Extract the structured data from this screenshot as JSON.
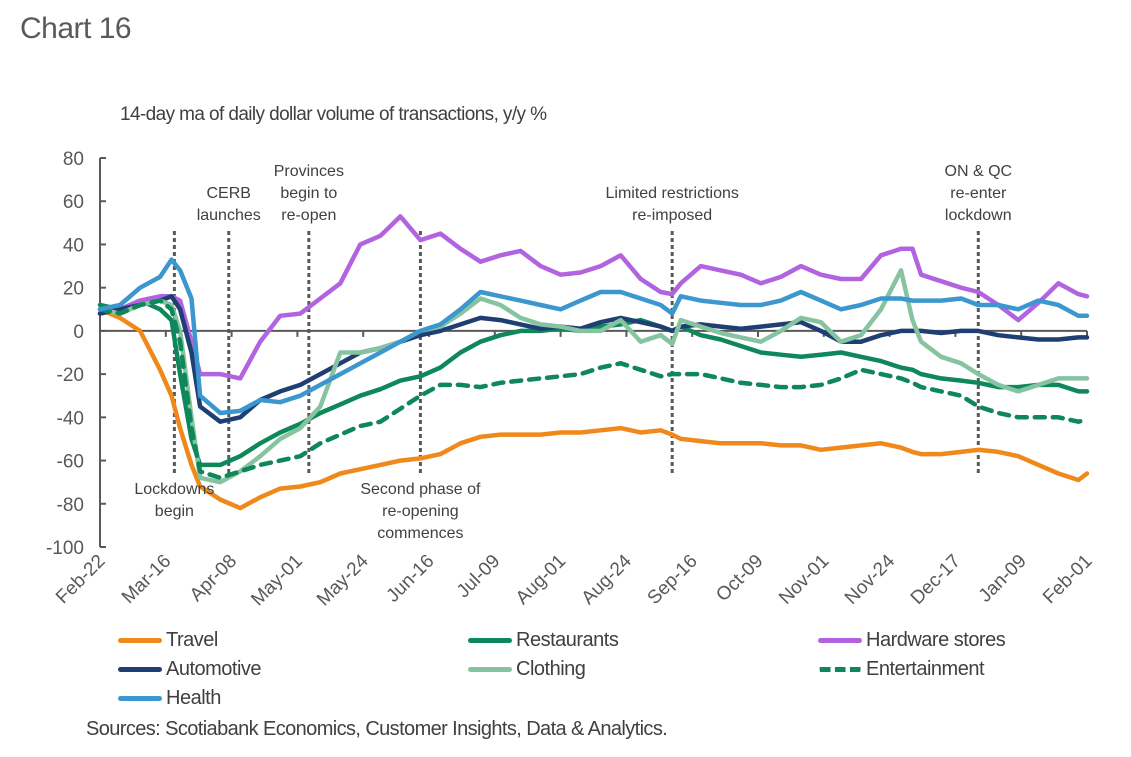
{
  "chart_data": {
    "type": "line",
    "title": "Chart 16",
    "subtitle": "14-day ma of daily dollar volume of transactions, y/y %",
    "xlabel": "",
    "ylabel": "",
    "ylim": [
      -100,
      80
    ],
    "yticks": [
      80,
      60,
      40,
      20,
      0,
      -20,
      -40,
      -60,
      -80,
      -100
    ],
    "x_tick_labels": [
      "Feb-22",
      "Mar-16",
      "Apr-08",
      "May-01",
      "May-24",
      "Jun-16",
      "Jul-09",
      "Aug-01",
      "Aug-24",
      "Sep-16",
      "Oct-09",
      "Nov-01",
      "Nov-24",
      "Dec-17",
      "Jan-09",
      "Feb-01"
    ],
    "x_unit": "days since Feb-22",
    "xlim": [
      0,
      345
    ],
    "grid": false,
    "legend_position": "bottom",
    "annotations": [
      {
        "day": 26,
        "text": [
          "Lockdowns",
          "begin"
        ],
        "position": "below"
      },
      {
        "day": 45,
        "text": [
          "CERB",
          "launches"
        ],
        "position": "above"
      },
      {
        "day": 73,
        "text": [
          "Provinces",
          "begin to",
          "re-open"
        ],
        "position": "above"
      },
      {
        "day": 112,
        "text": [
          "Second phase of",
          "re-opening",
          "commences"
        ],
        "position": "below"
      },
      {
        "day": 200,
        "text": [
          "Limited restrictions",
          "re-imposed"
        ],
        "position": "above"
      },
      {
        "day": 307,
        "text": [
          "ON & QC",
          "re-enter",
          "lockdown"
        ],
        "position": "above"
      }
    ],
    "x": [
      0,
      7,
      14,
      21,
      25,
      28,
      32,
      35,
      42,
      49,
      56,
      63,
      70,
      77,
      84,
      91,
      98,
      105,
      112,
      119,
      126,
      133,
      140,
      147,
      154,
      161,
      168,
      175,
      182,
      189,
      196,
      200,
      203,
      210,
      217,
      224,
      231,
      238,
      245,
      252,
      259,
      266,
      273,
      280,
      284,
      287,
      294,
      301,
      307,
      314,
      321,
      328,
      335,
      342,
      345
    ],
    "series": [
      {
        "name": "Travel",
        "color": "#F0891C",
        "dash": false,
        "values": [
          10,
          6,
          0,
          -18,
          -30,
          -45,
          -62,
          -72,
          -78,
          -82,
          -77,
          -73,
          -72,
          -70,
          -66,
          -64,
          -62,
          -60,
          -59,
          -57,
          -52,
          -49,
          -48,
          -48,
          -48,
          -47,
          -47,
          -46,
          -45,
          -47,
          -46,
          -48,
          -50,
          -51,
          -52,
          -52,
          -52,
          -53,
          -53,
          -55,
          -54,
          -53,
          -52,
          -54,
          -56,
          -57,
          -57,
          -56,
          -55,
          -56,
          -58,
          -62,
          -66,
          -69,
          -66
        ]
      },
      {
        "name": "Restaurants",
        "color": "#0E875B",
        "dash": false,
        "values": [
          12,
          10,
          14,
          10,
          5,
          -20,
          -50,
          -62,
          -62,
          -58,
          -52,
          -47,
          -43,
          -38,
          -34,
          -30,
          -27,
          -23,
          -21,
          -17,
          -10,
          -5,
          -2,
          0,
          0,
          1,
          0,
          2,
          3,
          5,
          2,
          0,
          2,
          -2,
          -4,
          -7,
          -10,
          -11,
          -12,
          -11,
          -10,
          -12,
          -14,
          -17,
          -18,
          -20,
          -22,
          -23,
          -24,
          -26,
          -26,
          -25,
          -25,
          -28,
          -28
        ]
      },
      {
        "name": "Hardware stores",
        "color": "#B163E0",
        "dash": false,
        "values": [
          8,
          10,
          14,
          16,
          16,
          14,
          -5,
          -20,
          -20,
          -22,
          -5,
          7,
          8,
          15,
          22,
          40,
          44,
          53,
          42,
          45,
          38,
          32,
          35,
          37,
          30,
          26,
          27,
          30,
          35,
          24,
          18,
          17,
          22,
          30,
          28,
          26,
          22,
          25,
          30,
          26,
          24,
          24,
          35,
          38,
          38,
          26,
          23,
          20,
          18,
          12,
          5,
          13,
          22,
          17,
          16
        ]
      },
      {
        "name": "Automotive",
        "color": "#1F3F73",
        "dash": false,
        "values": [
          8,
          10,
          12,
          14,
          16,
          10,
          -10,
          -35,
          -42,
          -40,
          -32,
          -28,
          -25,
          -20,
          -15,
          -10,
          -8,
          -5,
          -2,
          0,
          3,
          6,
          5,
          3,
          1,
          2,
          1,
          4,
          6,
          4,
          2,
          0,
          2,
          3,
          2,
          1,
          2,
          3,
          4,
          0,
          -5,
          -5,
          -2,
          0,
          0,
          0,
          -1,
          0,
          0,
          -2,
          -3,
          -4,
          -4,
          -3,
          -3
        ]
      },
      {
        "name": "Clothing",
        "color": "#86C3A0",
        "dash": false,
        "values": [
          10,
          8,
          12,
          14,
          12,
          0,
          -40,
          -68,
          -70,
          -65,
          -58,
          -50,
          -45,
          -35,
          -10,
          -10,
          -8,
          -5,
          0,
          2,
          8,
          15,
          12,
          6,
          3,
          2,
          0,
          0,
          5,
          -5,
          -2,
          -6,
          5,
          2,
          -1,
          -3,
          -5,
          0,
          6,
          4,
          -5,
          -2,
          10,
          28,
          5,
          -5,
          -12,
          -15,
          -20,
          -25,
          -28,
          -25,
          -22,
          -22,
          -22
        ]
      },
      {
        "name": "Entertainment",
        "color": "#0E875B",
        "dash": true,
        "values": [
          10,
          8,
          12,
          14,
          10,
          -5,
          -45,
          -65,
          -68,
          -65,
          -62,
          -60,
          -58,
          -52,
          -48,
          -44,
          -42,
          -36,
          -30,
          -25,
          -25,
          -26,
          -24,
          -23,
          -22,
          -21,
          -20,
          -17,
          -15,
          -18,
          -21,
          -20,
          -20,
          -20,
          -22,
          -24,
          -25,
          -26,
          -26,
          -25,
          -22,
          -18,
          -20,
          -22,
          -24,
          -26,
          -28,
          -30,
          -35,
          -38,
          -40,
          -40,
          -40,
          -42,
          -41
        ]
      },
      {
        "name": "Health",
        "color": "#3C97CE",
        "dash": false,
        "values": [
          10,
          12,
          20,
          25,
          33,
          28,
          15,
          -30,
          -38,
          -37,
          -32,
          -33,
          -30,
          -25,
          -20,
          -15,
          -10,
          -5,
          0,
          3,
          10,
          18,
          16,
          14,
          12,
          10,
          14,
          18,
          18,
          15,
          12,
          8,
          16,
          14,
          13,
          12,
          12,
          14,
          18,
          14,
          10,
          12,
          15,
          15,
          14,
          14,
          14,
          15,
          12,
          12,
          10,
          14,
          12,
          7,
          7
        ]
      }
    ]
  },
  "sources": "Sources: Scotiabank Economics, Customer Insights, Data & Analytics."
}
